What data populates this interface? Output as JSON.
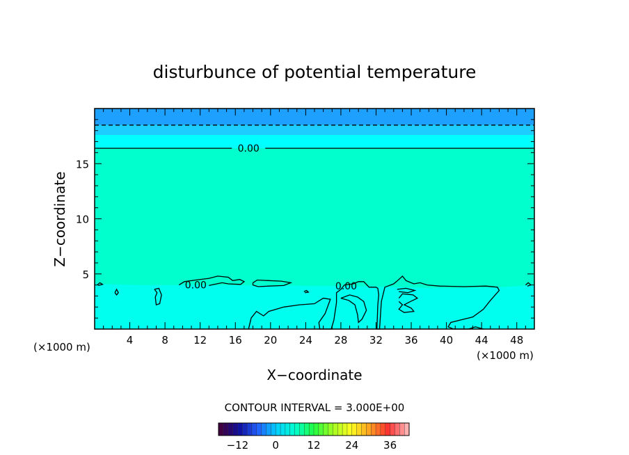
{
  "chart_data": {
    "type": "heatmap",
    "title": "disturbunce of potential temperature",
    "xlabel": "X−coordinate",
    "ylabel": "Z−coordinate",
    "x_unit_left": "(×1000 m)",
    "x_unit_right": "(×1000 m)",
    "xlim": [
      0,
      50
    ],
    "ylim": [
      0,
      20
    ],
    "x_ticks": [
      4,
      8,
      12,
      16,
      20,
      24,
      28,
      32,
      36,
      40,
      44,
      48
    ],
    "y_ticks": [
      5,
      10,
      15
    ],
    "x_tick_labels": [
      "4",
      "8",
      "12",
      "16",
      "20",
      "24",
      "28",
      "32",
      "36",
      "40",
      "44",
      "48"
    ],
    "y_tick_labels": [
      "5",
      "10",
      "15"
    ],
    "contour_interval_text": "CONTOUR INTERVAL = 3.000E+00",
    "contour_labels": [
      {
        "text": "0.00",
        "x": 17.5,
        "z": 16.4
      },
      {
        "text": "0.00",
        "x": 11.5,
        "z": 4.0
      },
      {
        "text": "0.00",
        "x": 28.6,
        "z": 3.9
      }
    ],
    "background_level": 0,
    "regions": [
      {
        "name": "upper-band-1",
        "value": -6,
        "z_range": [
          18.5,
          20
        ]
      },
      {
        "name": "upper-band-2",
        "value": -4,
        "z_range": [
          17.6,
          18.5
        ]
      },
      {
        "name": "upper-band-3",
        "value": -2,
        "z_range": [
          16.4,
          17.6
        ]
      }
    ],
    "colorbar": {
      "range": [
        -18,
        42
      ],
      "tick_values": [
        -12,
        0,
        12,
        24,
        36
      ],
      "tick_labels": [
        "−12",
        "0",
        "12",
        "24",
        "36"
      ]
    },
    "colors": {
      "level_neg6": "#1ea0ff",
      "level_neg4": "#1ecdff",
      "level_neg2": "#00ffff",
      "level_0": "#00ffcc",
      "low_region": "#00ffee"
    }
  }
}
